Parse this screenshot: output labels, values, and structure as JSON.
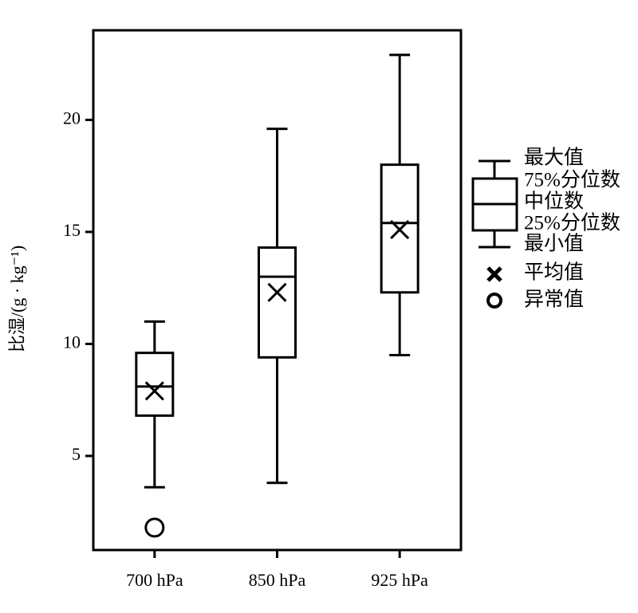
{
  "chart_data": {
    "type": "box",
    "y_label": "比湿/(g · kg⁻¹)",
    "categories": [
      "700 hPa",
      "850 hPa",
      "925 hPa"
    ],
    "boxes": [
      {
        "min": 3.6,
        "q1": 6.8,
        "median": 8.1,
        "q3": 9.6,
        "max": 11.0,
        "mean": 7.9,
        "outliers": [
          1.8
        ]
      },
      {
        "min": 3.8,
        "q1": 9.4,
        "median": 13.0,
        "q3": 14.3,
        "max": 19.6,
        "mean": 12.3,
        "outliers": []
      },
      {
        "min": 9.5,
        "q1": 12.3,
        "median": 15.4,
        "q3": 18.0,
        "max": 22.9,
        "mean": 15.1,
        "outliers": []
      }
    ],
    "ylim": [
      0.8,
      24
    ],
    "yticks": [
      5,
      10,
      15,
      20
    ],
    "color": "#000000",
    "legend": [
      "最大值",
      "75%分位数",
      "中位数",
      "25%分位数",
      "最小值",
      "平均值",
      "异常值"
    ]
  }
}
